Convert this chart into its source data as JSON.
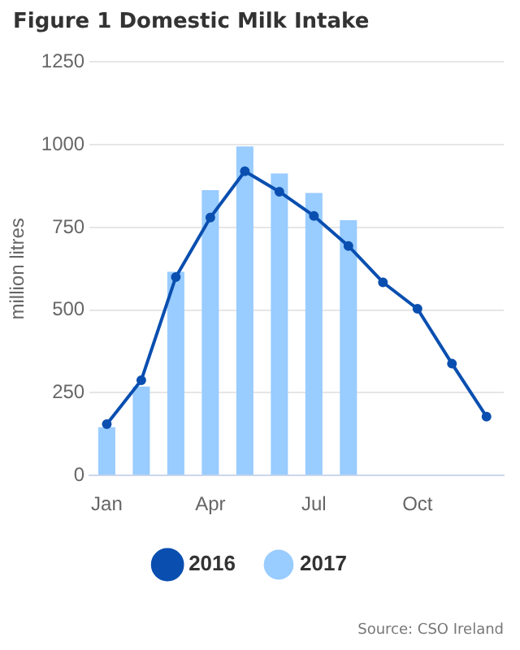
{
  "chart_data": {
    "type": "bar",
    "title": "Figure 1 Domestic Milk Intake",
    "ylabel": "million litres",
    "categories": [
      "Jan",
      null,
      null,
      "Apr",
      null,
      null,
      "Jul",
      null,
      null,
      "Oct",
      null,
      null
    ],
    "series": [
      {
        "name": "2016",
        "type": "line",
        "color": "#0a4fb0",
        "values": [
          155,
          288,
          600,
          780,
          920,
          858,
          785,
          694,
          584,
          504,
          338,
          178
        ]
      },
      {
        "name": "2017",
        "color": "#99ccff",
        "values": [
          146,
          269,
          616,
          863,
          995,
          913,
          854,
          772,
          null,
          null,
          null,
          null
        ]
      }
    ],
    "ylim": [
      0,
      1250
    ],
    "yticks": [
      0,
      250,
      500,
      750,
      1000,
      1250
    ],
    "grid": "y",
    "legend": "bottom",
    "marker": "circle",
    "annotations": [
      "Source: CSO Ireland"
    ]
  }
}
